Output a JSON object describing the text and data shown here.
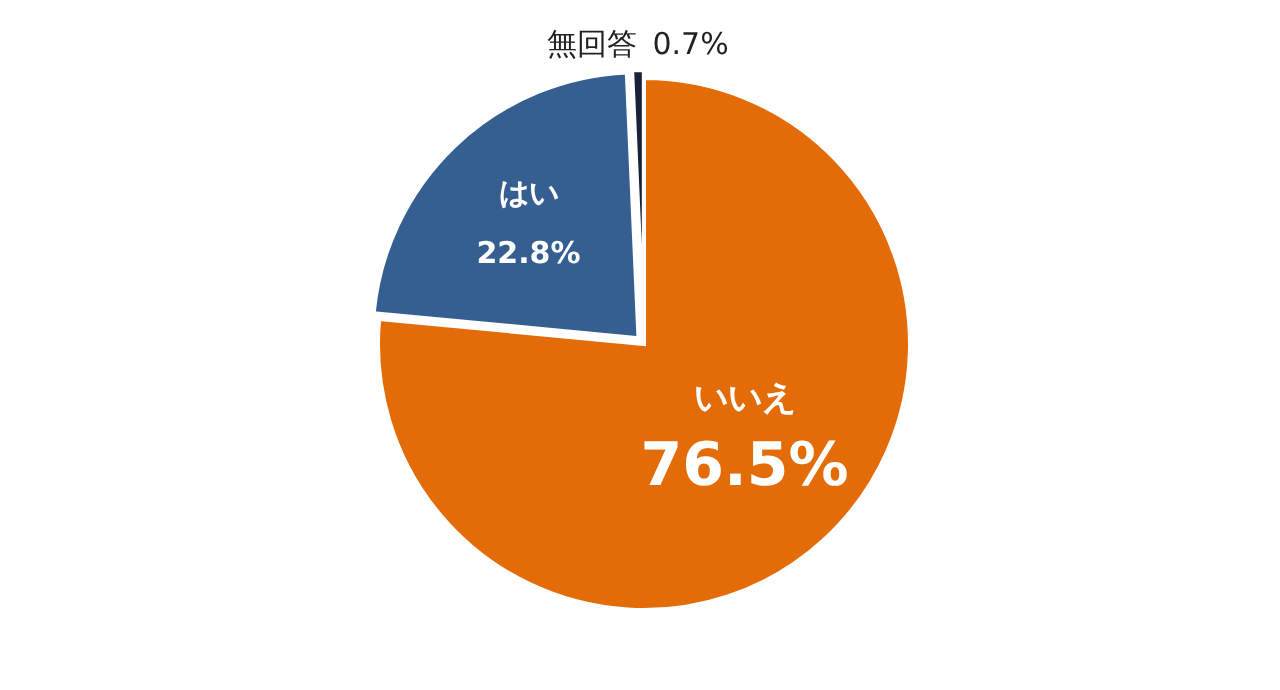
{
  "chart_data": {
    "type": "pie",
    "categories": [
      "いいえ",
      "はい",
      "無回答"
    ],
    "values": [
      76.5,
      22.8,
      0.7
    ],
    "value_labels": [
      "76.5%",
      "22.8%",
      "0.7%"
    ],
    "colors": [
      "#e36c09",
      "#355f91",
      "#1a2238"
    ]
  }
}
